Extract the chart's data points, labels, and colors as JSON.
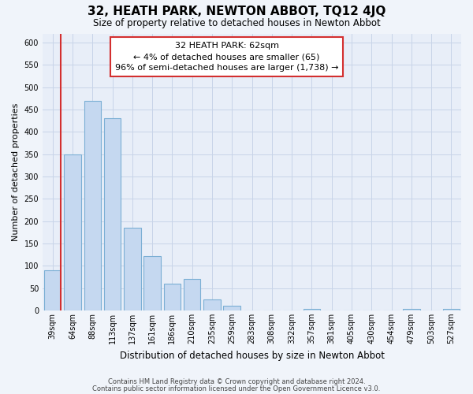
{
  "title": "32, HEATH PARK, NEWTON ABBOT, TQ12 4JQ",
  "subtitle": "Size of property relative to detached houses in Newton Abbot",
  "xlabel": "Distribution of detached houses by size in Newton Abbot",
  "ylabel": "Number of detached properties",
  "bar_labels": [
    "39sqm",
    "64sqm",
    "88sqm",
    "113sqm",
    "137sqm",
    "161sqm",
    "186sqm",
    "210sqm",
    "235sqm",
    "259sqm",
    "283sqm",
    "308sqm",
    "332sqm",
    "357sqm",
    "381sqm",
    "405sqm",
    "430sqm",
    "454sqm",
    "479sqm",
    "503sqm",
    "527sqm"
  ],
  "bar_values": [
    90,
    350,
    470,
    430,
    185,
    122,
    60,
    70,
    25,
    10,
    0,
    0,
    0,
    3,
    0,
    0,
    0,
    0,
    3,
    0,
    3
  ],
  "bar_color": "#c5d8f0",
  "bar_edge_color": "#7bafd4",
  "bar_edge_width": 0.8,
  "highlight_color": "#d32f2f",
  "red_line_after_index": 0,
  "annotation_text": "32 HEATH PARK: 62sqm\n← 4% of detached houses are smaller (65)\n96% of semi-detached houses are larger (1,738) →",
  "annotation_box_color": "#ffffff",
  "annotation_box_edge": "#d32f2f",
  "ylim": [
    0,
    620
  ],
  "bg_color": "#f0f4fa",
  "plot_bg_color": "#e8eef8",
  "grid_color": "#c8d4e8",
  "fig_width": 6.0,
  "fig_height": 5.0,
  "title_fontsize": 11,
  "subtitle_fontsize": 8.5,
  "ylabel_fontsize": 8,
  "xlabel_fontsize": 8.5,
  "tick_fontsize": 7,
  "annotation_fontsize": 8,
  "footer_fontsize": 6,
  "footer_color": "#444444",
  "footer_line1": "Contains HM Land Registry data © Crown copyright and database right 2024.",
  "footer_line2": "Contains public sector information licensed under the Open Government Licence v3.0."
}
